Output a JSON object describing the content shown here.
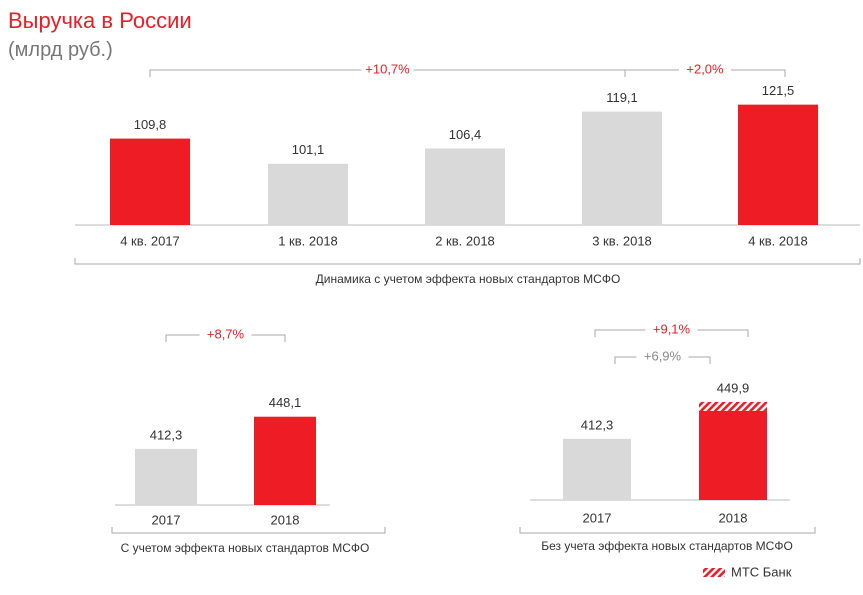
{
  "title": "Выручка в России",
  "subtitle": "(млрд руб.)",
  "chart_data": [
    {
      "type": "bar",
      "categories": [
        "4 кв. 2017",
        "1 кв. 2018",
        "2 кв. 2018",
        "3 кв. 2018",
        "4 кв. 2018"
      ],
      "values": [
        109.8,
        101.1,
        106.4,
        119.1,
        121.5
      ],
      "value_labels": [
        "109,8",
        "101,1",
        "106,4",
        "119,1",
        "121,5"
      ],
      "colors": [
        "#ee1c25",
        "#d9d9d9",
        "#d9d9d9",
        "#d9d9d9",
        "#ee1c25"
      ],
      "ylim": [
        80,
        125
      ],
      "annotations": [
        "+10,7%",
        "+2,0%"
      ],
      "caption": "Динамика с учетом эффекта новых стандартов МСФО"
    },
    {
      "type": "bar",
      "categories": [
        "2017",
        "2018"
      ],
      "values": [
        412.3,
        448.1
      ],
      "value_labels": [
        "412,3",
        "448,1"
      ],
      "colors": [
        "#d9d9d9",
        "#ee1c25"
      ],
      "ylim": [
        350,
        460
      ],
      "annotations": [
        "+8,7%"
      ],
      "caption": "С учетом эффекта новых стандартов МСФО"
    },
    {
      "type": "stacked_bar",
      "categories": [
        "2017",
        "2018"
      ],
      "values": [
        412.3,
        440.7
      ],
      "colors": [
        "#d9d9d9",
        "#ee1c25"
      ],
      "stack": {
        "name": "МТС Банк",
        "color": "#ee1c25",
        "values": [
          null,
          9.2
        ]
      },
      "totals": {
        "values": [
          412.3,
          449.9
        ],
        "value_labels": [
          "412,3",
          "449,9"
        ]
      },
      "ylim": [
        350,
        460
      ],
      "annotations": [
        "+9,1%",
        "+6,9%"
      ],
      "caption": "Без учета эффекта новых стандартов МСФО"
    }
  ]
}
